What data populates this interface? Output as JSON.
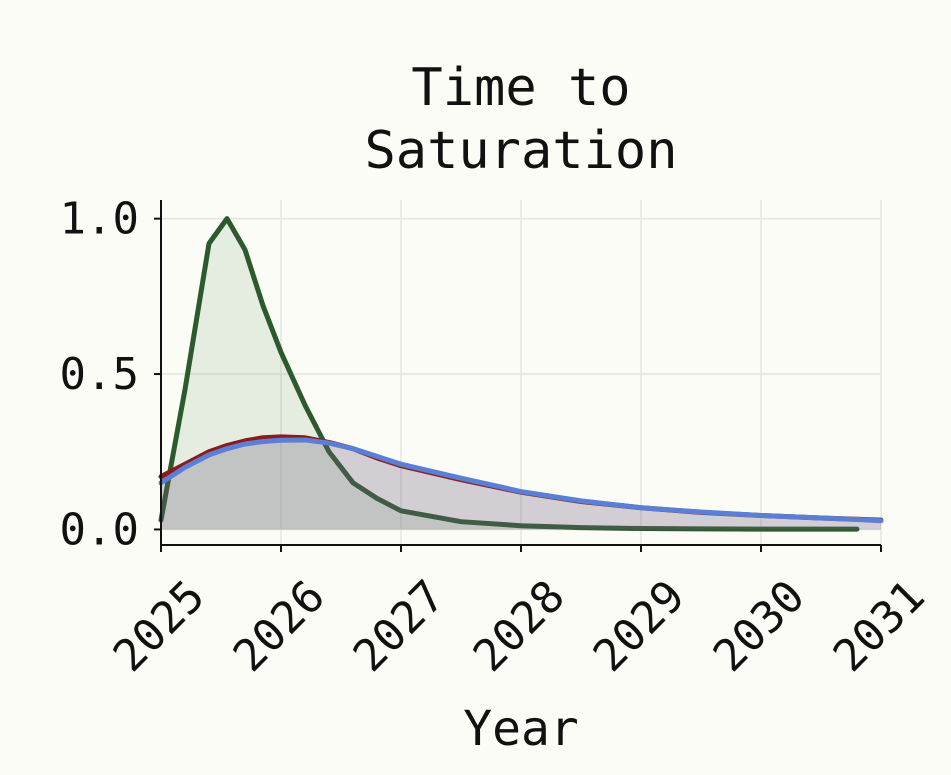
{
  "chart_data": {
    "type": "line",
    "title": [
      "Time to",
      "Saturation"
    ],
    "x_label": "Year",
    "x": [
      2025,
      2025.2,
      2025.4,
      2025.55,
      2025.7,
      2025.85,
      2026,
      2026.2,
      2026.4,
      2026.6,
      2026.8,
      2027,
      2027.5,
      2028,
      2028.5,
      2029,
      2029.5,
      2030,
      2030.5,
      2030.8,
      2031
    ],
    "series": [
      {
        "color": "#2d5a2d",
        "values": [
          0.03,
          0.45,
          0.92,
          1.0,
          0.9,
          0.72,
          0.57,
          0.4,
          0.25,
          0.15,
          0.1,
          0.06,
          0.025,
          0.012,
          0.006,
          0.003,
          0.002,
          0.001,
          0.001,
          0.001,
          null
        ]
      },
      {
        "color": "#8b1a1a",
        "values": [
          0.17,
          0.21,
          0.25,
          0.27,
          0.285,
          0.295,
          0.298,
          0.295,
          0.28,
          0.26,
          0.23,
          0.205,
          0.16,
          0.12,
          0.09,
          0.07,
          0.055,
          0.045,
          0.037,
          0.033,
          0.03
        ]
      },
      {
        "color": "#5b7fd6",
        "values": [
          0.15,
          0.2,
          0.24,
          0.26,
          0.275,
          0.283,
          0.287,
          0.288,
          0.278,
          0.26,
          0.235,
          0.21,
          0.165,
          0.122,
          0.092,
          0.07,
          0.056,
          0.045,
          0.037,
          0.032,
          0.028
        ]
      }
    ],
    "xlim": [
      2025,
      2031
    ],
    "xticks": [
      2025,
      2026,
      2027,
      2028,
      2029,
      2030,
      2031
    ],
    "ylim": [
      -0.05,
      1.06
    ],
    "yticks": [
      {
        "value": 0,
        "label": "0.0"
      },
      0.5,
      {
        "value": 1,
        "label": "1.0"
      }
    ],
    "grid": true
  }
}
